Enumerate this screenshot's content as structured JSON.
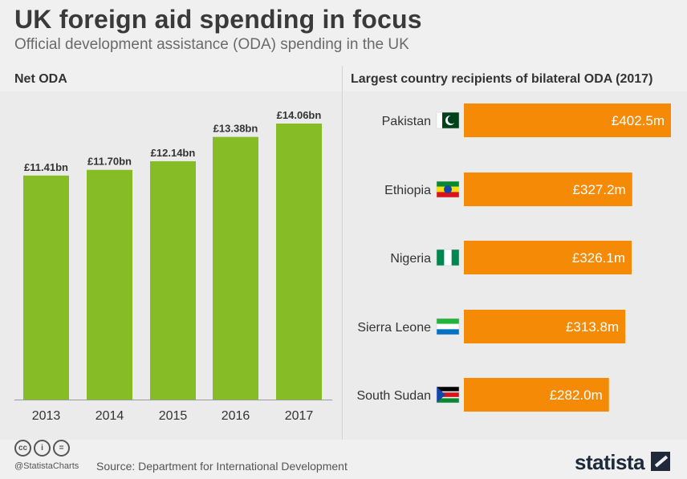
{
  "header": {
    "title": "UK foreign aid spending in focus",
    "subtitle": "Official development assistance (ODA) spending in the UK"
  },
  "footer": {
    "handle": "@StatistaCharts",
    "source": "Source: Department for International Development",
    "logo": "statista",
    "license_icons": [
      "cc-icon",
      "by-icon",
      "nd-icon"
    ]
  },
  "colors": {
    "green_bar": "#86bc25",
    "orange_bar": "#f58a07",
    "background": "#f0f0f0"
  },
  "chart_data": [
    {
      "type": "bar",
      "title": "Net ODA",
      "categories": [
        "2013",
        "2014",
        "2015",
        "2016",
        "2017"
      ],
      "values": [
        11.41,
        11.7,
        12.14,
        13.38,
        14.06
      ],
      "labels": [
        "£11.41bn",
        "£11.70bn",
        "£12.14bn",
        "£13.38bn",
        "£14.06bn"
      ],
      "unit": "£bn",
      "ylim": [
        0,
        14.06
      ],
      "grid": false
    },
    {
      "type": "bar",
      "orientation": "horizontal",
      "title": "Largest country recipients of bilateral ODA (2017)",
      "categories": [
        "Pakistan",
        "Ethiopia",
        "Nigeria",
        "Sierra Leone",
        "South Sudan"
      ],
      "values": [
        402.5,
        327.2,
        326.1,
        313.8,
        282.0
      ],
      "labels": [
        "£402.5m",
        "£327.2m",
        "£326.1m",
        "£313.8m",
        "£282.0m"
      ],
      "icons": [
        "pakistan-flag-icon",
        "ethiopia-flag-icon",
        "nigeria-flag-icon",
        "sierra-leone-flag-icon",
        "south-sudan-flag-icon"
      ],
      "unit": "£m",
      "xlim": [
        0,
        402.5
      ],
      "grid": false
    }
  ]
}
